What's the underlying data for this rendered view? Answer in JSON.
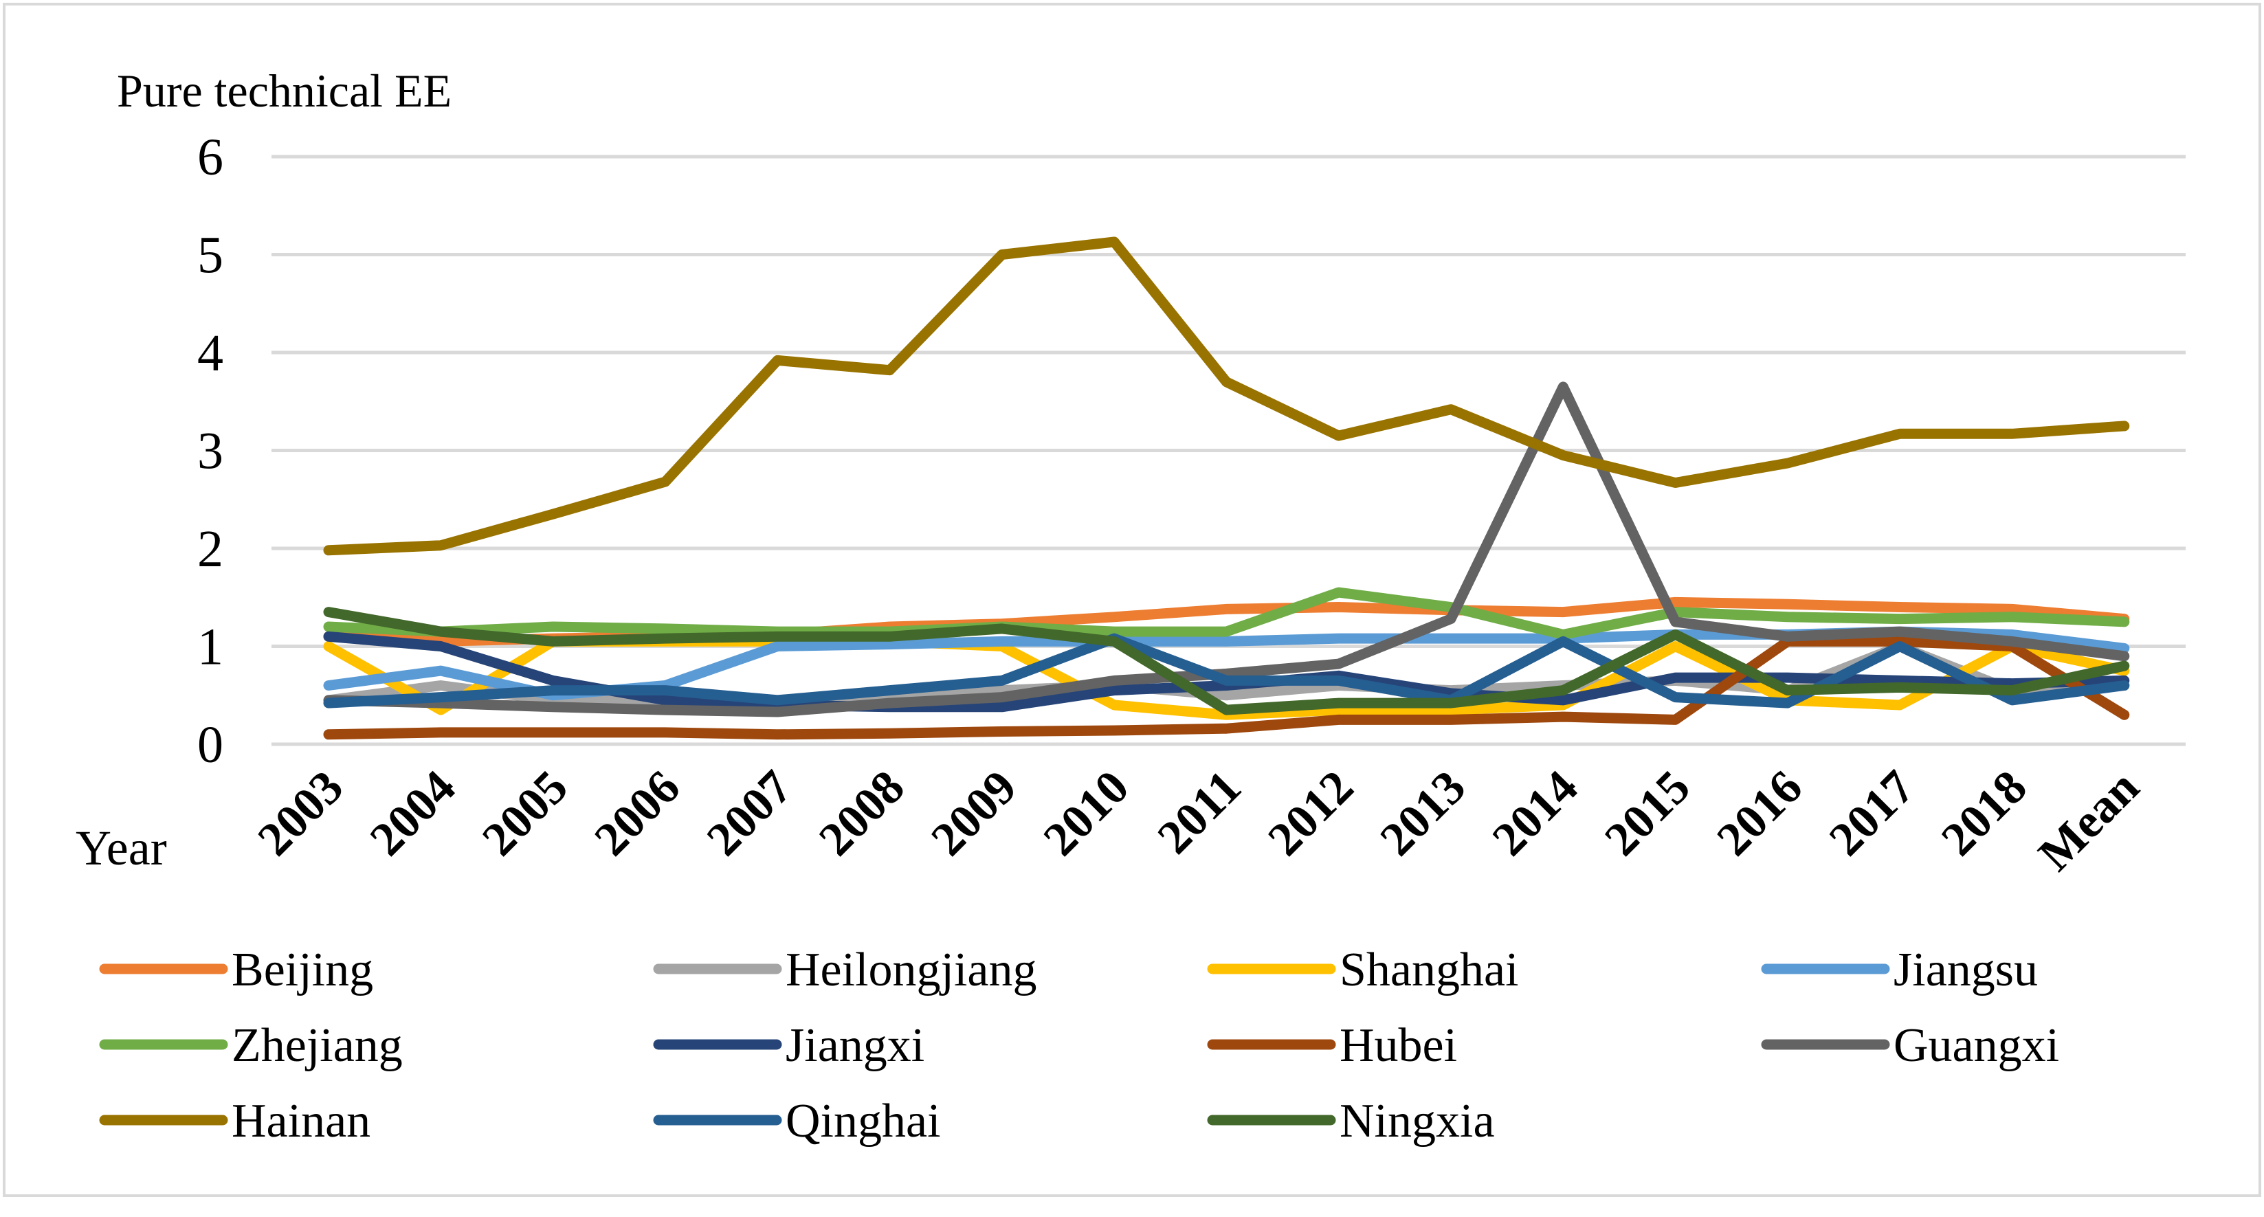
{
  "chart_data": {
    "type": "line",
    "ylabel": "Pure technical EE",
    "xlabel": "Year",
    "ylim": [
      0,
      6
    ],
    "yticks": [
      "0",
      "1",
      "2",
      "3",
      "4",
      "5",
      "6"
    ],
    "grid": true,
    "legend_position": "bottom",
    "categories": [
      "2003",
      "2004",
      "2005",
      "2006",
      "2007",
      "2008",
      "2009",
      "2010",
      "2011",
      "2012",
      "2013",
      "2014",
      "2015",
      "2016",
      "2017",
      "2018",
      "Mean"
    ],
    "series": [
      {
        "name": "Beijing",
        "color": "#ED7D31",
        "values": [
          1.1,
          1.05,
          1.08,
          1.1,
          1.12,
          1.2,
          1.23,
          1.3,
          1.38,
          1.4,
          1.37,
          1.35,
          1.45,
          1.43,
          1.4,
          1.38,
          1.28
        ]
      },
      {
        "name": "Heilongjiang",
        "color": "#A5A5A5",
        "values": [
          0.45,
          0.6,
          0.45,
          0.45,
          0.42,
          0.48,
          0.55,
          0.6,
          0.5,
          0.6,
          0.55,
          0.6,
          0.65,
          0.55,
          1.0,
          0.55,
          0.6
        ]
      },
      {
        "name": "Shanghai",
        "color": "#FFC000",
        "values": [
          1.0,
          0.35,
          1.05,
          1.05,
          1.05,
          1.05,
          1.0,
          0.4,
          0.3,
          0.35,
          0.35,
          0.4,
          1.0,
          0.45,
          0.4,
          1.0,
          0.75
        ]
      },
      {
        "name": "Jiangsu",
        "color": "#5B9BD5",
        "values": [
          0.6,
          0.75,
          0.5,
          0.6,
          1.0,
          1.02,
          1.05,
          1.05,
          1.05,
          1.08,
          1.08,
          1.08,
          1.12,
          1.12,
          1.15,
          1.12,
          0.98
        ]
      },
      {
        "name": "Zhejiang",
        "color": "#70AD47",
        "values": [
          1.2,
          1.15,
          1.2,
          1.18,
          1.15,
          1.15,
          1.2,
          1.15,
          1.15,
          1.55,
          1.4,
          1.12,
          1.35,
          1.3,
          1.28,
          1.3,
          1.25
        ]
      },
      {
        "name": "Jiangxi",
        "color": "#264478",
        "values": [
          1.1,
          1.0,
          0.65,
          0.45,
          0.4,
          0.38,
          0.38,
          0.55,
          0.6,
          0.7,
          0.52,
          0.45,
          0.68,
          0.68,
          0.65,
          0.62,
          0.65
        ]
      },
      {
        "name": "Hubei",
        "color": "#9E480E",
        "values": [
          0.1,
          0.12,
          0.12,
          0.12,
          0.1,
          0.11,
          0.13,
          0.14,
          0.16,
          0.25,
          0.25,
          0.28,
          0.25,
          1.05,
          1.05,
          1.0,
          0.3
        ]
      },
      {
        "name": "Guangxi",
        "color": "#636363",
        "values": [
          0.45,
          0.42,
          0.38,
          0.35,
          0.33,
          0.42,
          0.48,
          0.65,
          0.72,
          0.82,
          1.28,
          3.65,
          1.25,
          1.1,
          1.15,
          1.05,
          0.9
        ]
      },
      {
        "name": "Hainan",
        "color": "#997300",
        "values": [
          1.98,
          2.03,
          2.35,
          2.68,
          3.92,
          3.82,
          5.0,
          5.13,
          3.7,
          3.15,
          3.42,
          2.95,
          2.67,
          2.87,
          3.17,
          3.17,
          3.25
        ]
      },
      {
        "name": "Qinghai",
        "color": "#255E91",
        "values": [
          0.42,
          0.48,
          0.55,
          0.55,
          0.45,
          0.55,
          0.65,
          1.08,
          0.65,
          0.65,
          0.45,
          1.05,
          0.48,
          0.42,
          1.0,
          0.45,
          0.6
        ]
      },
      {
        "name": "Ningxia",
        "color": "#43682B",
        "values": [
          1.35,
          1.15,
          1.05,
          1.08,
          1.1,
          1.1,
          1.18,
          1.05,
          0.35,
          0.42,
          0.42,
          0.55,
          1.12,
          0.55,
          0.58,
          0.55,
          0.8
        ]
      }
    ]
  }
}
